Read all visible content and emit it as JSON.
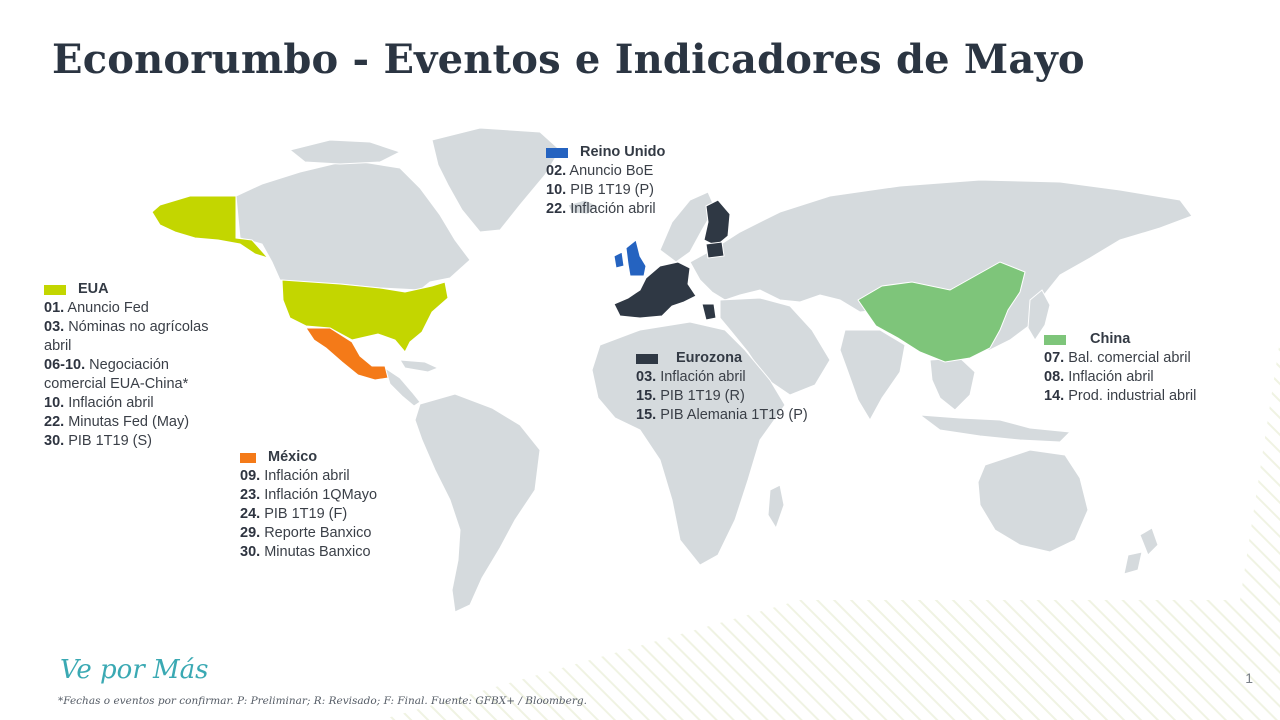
{
  "title": "Econorumbo - Eventos e Indicadores de Mayo",
  "colors": {
    "land": "#d5dadd",
    "eua": "#c3d600",
    "mexico": "#f47a18",
    "reino_unido": "#2563c0",
    "eurozona": "#2f3844",
    "china": "#7ec57a"
  },
  "regions": {
    "eua": {
      "name": "EUA",
      "events": [
        {
          "date": "01.",
          "text": "Anuncio Fed"
        },
        {
          "date": "03.",
          "text": "Nóminas no agrícolas abril"
        },
        {
          "date": "06-10.",
          "text": "Negociación comercial EUA-China*"
        },
        {
          "date": "10.",
          "text": "Inflación abril"
        },
        {
          "date": "22.",
          "text": "Minutas Fed (May)"
        },
        {
          "date": "30.",
          "text": "PIB 1T19 (S)"
        }
      ]
    },
    "mexico": {
      "name": "México",
      "events": [
        {
          "date": "09.",
          "text": "Inflación abril"
        },
        {
          "date": "23.",
          "text": "Inflación 1QMayo"
        },
        {
          "date": "24.",
          "text": "PIB 1T19 (F)"
        },
        {
          "date": "29.",
          "text": "Reporte Banxico"
        },
        {
          "date": "30.",
          "text": "Minutas Banxico"
        }
      ]
    },
    "reino_unido": {
      "name": "Reino Unido",
      "events": [
        {
          "date": "02.",
          "text": "Anuncio BoE"
        },
        {
          "date": "10.",
          "text": "PIB 1T19 (P)"
        },
        {
          "date": "22.",
          "text": "Inflación abril"
        }
      ]
    },
    "eurozona": {
      "name": "Eurozona",
      "events": [
        {
          "date": "03.",
          "text": "Inflación abril"
        },
        {
          "date": "15.",
          "text": "PIB 1T19 (R)"
        },
        {
          "date": "15.",
          "text": "PIB Alemania 1T19 (P)"
        }
      ]
    },
    "china": {
      "name": "China",
      "events": [
        {
          "date": "07.",
          "text": "Bal. comercial abril"
        },
        {
          "date": "08.",
          "text": "Inflación abril"
        },
        {
          "date": "14.",
          "text": "Prod. industrial abril"
        }
      ]
    }
  },
  "brand": "Ve por Más",
  "footnote": "*Fechas o eventos por confirmar. P: Preliminar; R: Revisado; F: Final. Fuente: GFBX+ / Bloomberg.",
  "page_number": "1"
}
